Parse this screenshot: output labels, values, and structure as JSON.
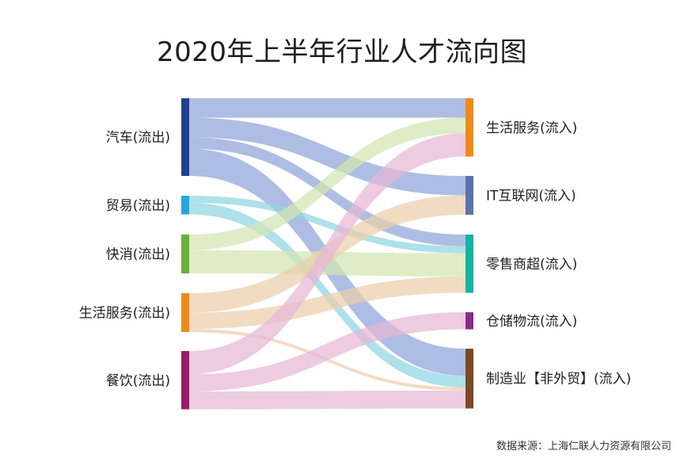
{
  "title": "2020年上半年行业人才流向图",
  "source_note": "数据来源：上海仁联人力资源有限公司",
  "chart_data": {
    "type": "sankey",
    "sources": [
      {
        "label": "汽车(流出)",
        "color": "#1f3f8f",
        "value": 100
      },
      {
        "label": "贸易(流出)",
        "color": "#24a7e0",
        "value": 24
      },
      {
        "label": "快消(流出)",
        "color": "#6bb03c",
        "value": 50
      },
      {
        "label": "生活服务(流出)",
        "color": "#ef8a1a",
        "value": 50
      },
      {
        "label": "餐饮(流出)",
        "color": "#9b1a6a",
        "value": 75
      }
    ],
    "targets": [
      {
        "label": "生活服务(流入)",
        "color": "#ef8a1a",
        "value": 75
      },
      {
        "label": "IT互联网(流入)",
        "color": "#5a72b0",
        "value": 50
      },
      {
        "label": "零售商超(流入)",
        "color": "#16b3a0",
        "value": 75
      },
      {
        "label": "仓储物流(流入)",
        "color": "#8a2a8a",
        "value": 22
      },
      {
        "label": "制造业【非外贸】(流入)",
        "color": "#7a4a22",
        "value": 77
      }
    ],
    "links": [
      {
        "source": 0,
        "target": 0,
        "value": 25,
        "color": "#8fa3d8"
      },
      {
        "source": 0,
        "target": 1,
        "value": 25,
        "color": "#8fa3d8"
      },
      {
        "source": 0,
        "target": 2,
        "value": 15,
        "color": "#8fa3d8"
      },
      {
        "source": 0,
        "target": 4,
        "value": 35,
        "color": "#8fa3d8"
      },
      {
        "source": 1,
        "target": 2,
        "value": 9,
        "color": "#8fd6e0"
      },
      {
        "source": 1,
        "target": 4,
        "value": 15,
        "color": "#8fd6e0"
      },
      {
        "source": 2,
        "target": 0,
        "value": 20,
        "color": "#d3e6b2"
      },
      {
        "source": 2,
        "target": 2,
        "value": 30,
        "color": "#d3e6b2"
      },
      {
        "source": 3,
        "target": 1,
        "value": 25,
        "color": "#eccfaa"
      },
      {
        "source": 3,
        "target": 2,
        "value": 21,
        "color": "#eccfaa"
      },
      {
        "source": 3,
        "target": 4,
        "value": 4,
        "color": "#eccfaa"
      },
      {
        "source": 4,
        "target": 0,
        "value": 30,
        "color": "#e6b7d5"
      },
      {
        "source": 4,
        "target": 3,
        "value": 22,
        "color": "#e6b7d5"
      },
      {
        "source": 4,
        "target": 4,
        "value": 23,
        "color": "#e6b7d5"
      }
    ]
  }
}
